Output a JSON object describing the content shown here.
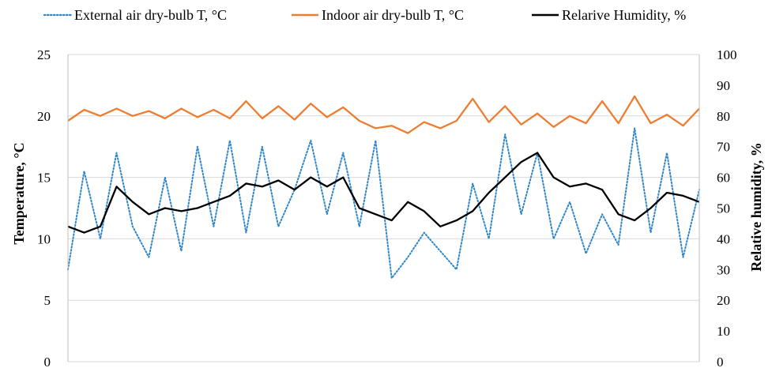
{
  "chart_data": {
    "type": "line",
    "title": "",
    "xlabel": "",
    "ylabel": "Temperature, °C",
    "y2label": "Relative humidity, %",
    "ylim": [
      0,
      25
    ],
    "y2lim": [
      0,
      100
    ],
    "yticks": [
      "0",
      "5",
      "10",
      "15",
      "20",
      "25"
    ],
    "y2ticks": [
      "0",
      "10",
      "20",
      "30",
      "40",
      "50",
      "60",
      "70",
      "80",
      "90",
      "100"
    ],
    "grid": "horizontal",
    "legend": "top",
    "x_count": 40,
    "series": [
      {
        "name": "External air dry-bulb T, °C",
        "axis": "left",
        "color": "#2e86c8",
        "style": "dotted",
        "values": [
          7.5,
          15.5,
          10.0,
          17.0,
          11.0,
          8.5,
          15.0,
          9.0,
          17.5,
          11.0,
          18.0,
          10.5,
          17.5,
          11.0,
          14.0,
          18.0,
          12.0,
          17.0,
          11.0,
          18.0,
          6.8,
          8.5,
          10.5,
          9.0,
          7.5,
          14.5,
          10.0,
          18.5,
          12.0,
          17.0,
          10.0,
          13.0,
          8.8,
          12.0,
          9.5,
          19.0,
          10.5,
          17.0,
          8.5,
          14.0
        ]
      },
      {
        "name": "Indoor air dry-bulb T, °C",
        "axis": "left",
        "color": "#ed7d31",
        "style": "solid",
        "values": [
          19.6,
          20.5,
          20.0,
          20.6,
          20.0,
          20.4,
          19.8,
          20.6,
          19.9,
          20.5,
          19.8,
          21.2,
          19.8,
          20.8,
          19.7,
          21.0,
          19.9,
          20.7,
          19.6,
          19.0,
          19.2,
          18.6,
          19.5,
          19.0,
          19.6,
          21.4,
          19.5,
          20.8,
          19.3,
          20.2,
          19.1,
          20.0,
          19.4,
          21.2,
          19.4,
          21.6,
          19.4,
          20.1,
          19.2,
          20.6
        ]
      },
      {
        "name": "Relarive Humidity, %",
        "axis": "right",
        "color": "#000000",
        "style": "solid",
        "values": [
          44,
          42,
          44,
          57,
          52,
          48,
          50,
          49,
          50,
          52,
          54,
          58,
          57,
          59,
          56,
          60,
          57,
          60,
          50,
          48,
          46,
          52,
          49,
          44,
          46,
          49,
          55,
          60,
          65,
          68,
          60,
          57,
          58,
          56,
          48,
          46,
          50,
          55,
          54,
          52
        ]
      }
    ]
  }
}
